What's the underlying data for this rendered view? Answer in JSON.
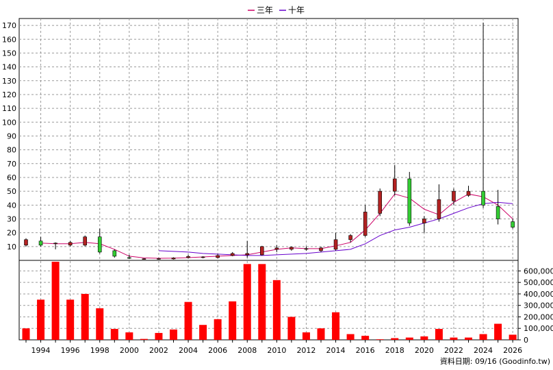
{
  "legend": {
    "ma3_label": "三年",
    "ma10_label": "十年",
    "ma3_color": "#cc0066",
    "ma10_color": "#6600cc"
  },
  "footer": {
    "text": "資料日期: 09/16  (Goodinfo.tw)"
  },
  "colors": {
    "up_candle": "#b22222",
    "down_candle": "#33cc33",
    "volume_bar": "#ff0000",
    "grid": "#999999"
  },
  "chart_data": {
    "type": "candlestick+line+bar",
    "x_ticks": [
      "1994",
      "1996",
      "1998",
      "2000",
      "2002",
      "2004",
      "2006",
      "2008",
      "2010",
      "2012",
      "2014",
      "2016",
      "2018",
      "2020",
      "2022",
      "2024",
      "2026"
    ],
    "price_axis": {
      "ylim": [
        0,
        175
      ],
      "ticks": [
        10,
        20,
        30,
        40,
        50,
        60,
        70,
        80,
        90,
        100,
        110,
        120,
        130,
        140,
        150,
        160,
        170
      ]
    },
    "volume_axis": {
      "ylim": [
        0,
        680000
      ],
      "ticks": [
        0,
        100000,
        200000,
        300000,
        400000,
        500000,
        600000
      ],
      "tick_labels": [
        "0",
        "100,000",
        "200,000",
        "300,000",
        "400,000",
        "500,000",
        "600,000"
      ]
    },
    "candles": [
      {
        "year": 1993,
        "open": 11,
        "close": 15,
        "high": 16,
        "low": 10
      },
      {
        "year": 1994,
        "open": 14,
        "close": 11,
        "high": 17,
        "low": 10
      },
      {
        "year": 1995,
        "open": 12,
        "close": 12.5,
        "high": 13,
        "low": 8
      },
      {
        "year": 1996,
        "open": 11,
        "close": 13,
        "high": 14,
        "low": 10
      },
      {
        "year": 1997,
        "open": 11,
        "close": 17,
        "high": 18,
        "low": 10
      },
      {
        "year": 1998,
        "open": 17,
        "close": 6,
        "high": 23,
        "low": 5
      },
      {
        "year": 1999,
        "open": 7,
        "close": 3,
        "high": 8,
        "low": 2
      },
      {
        "year": 2000,
        "open": 2,
        "close": 1.5,
        "high": 4,
        "low": 1
      },
      {
        "year": 2001,
        "open": 1,
        "close": 1.2,
        "high": 1.5,
        "low": 0.5
      },
      {
        "year": 2002,
        "open": 1,
        "close": 1.3,
        "high": 1.8,
        "low": 0.5
      },
      {
        "year": 2003,
        "open": 1,
        "close": 1.8,
        "high": 2.2,
        "low": 0.6
      },
      {
        "year": 2004,
        "open": 2,
        "close": 2.8,
        "high": 4,
        "low": 1.5
      },
      {
        "year": 2005,
        "open": 2,
        "close": 2.5,
        "high": 3,
        "low": 1.5
      },
      {
        "year": 2006,
        "open": 2,
        "close": 3.5,
        "high": 4.5,
        "low": 1.5
      },
      {
        "year": 2007,
        "open": 3.5,
        "close": 5,
        "high": 6,
        "low": 3
      },
      {
        "year": 2008,
        "open": 4,
        "close": 5,
        "high": 14,
        "low": 2
      },
      {
        "year": 2009,
        "open": 4,
        "close": 10,
        "high": 10.5,
        "low": 3.5
      },
      {
        "year": 2010,
        "open": 8,
        "close": 9,
        "high": 11,
        "low": 6
      },
      {
        "year": 2011,
        "open": 8,
        "close": 9.5,
        "high": 10,
        "low": 7
      },
      {
        "year": 2012,
        "open": 8,
        "close": 8.5,
        "high": 10,
        "low": 7
      },
      {
        "year": 2013,
        "open": 7,
        "close": 9,
        "high": 10,
        "low": 6
      },
      {
        "year": 2014,
        "open": 8,
        "close": 15,
        "high": 20,
        "low": 7
      },
      {
        "year": 2015,
        "open": 15,
        "close": 18,
        "high": 19,
        "low": 13
      },
      {
        "year": 2016,
        "open": 18,
        "close": 35,
        "high": 40,
        "low": 17
      },
      {
        "year": 2017,
        "open": 34,
        "close": 50,
        "high": 52,
        "low": 32
      },
      {
        "year": 2018,
        "open": 50,
        "close": 59,
        "high": 69,
        "low": 47
      },
      {
        "year": 2019,
        "open": 59,
        "close": 27,
        "high": 64,
        "low": 25
      },
      {
        "year": 2020,
        "open": 27,
        "close": 30,
        "high": 32,
        "low": 20
      },
      {
        "year": 2021,
        "open": 30,
        "close": 44,
        "high": 55,
        "low": 28
      },
      {
        "year": 2022,
        "open": 43,
        "close": 50,
        "high": 52,
        "low": 40
      },
      {
        "year": 2023,
        "open": 47,
        "close": 50,
        "high": 54,
        "low": 46
      },
      {
        "year": 2024,
        "open": 50,
        "close": 40,
        "high": 172,
        "low": 38
      },
      {
        "year": 2025,
        "open": 39,
        "close": 30,
        "high": 51,
        "low": 26
      },
      {
        "year": 2026,
        "open": 28,
        "close": 24,
        "high": 30,
        "low": 23
      }
    ],
    "series": [
      {
        "name": "三年",
        "points": [
          [
            1994,
            12.5
          ],
          [
            1995,
            12
          ],
          [
            1996,
            12
          ],
          [
            1997,
            13
          ],
          [
            1998,
            12
          ],
          [
            1999,
            8
          ],
          [
            2000,
            3
          ],
          [
            2001,
            1.8
          ],
          [
            2002,
            1.5
          ],
          [
            2003,
            1.6
          ],
          [
            2004,
            2
          ],
          [
            2005,
            2.5
          ],
          [
            2006,
            3
          ],
          [
            2007,
            3.5
          ],
          [
            2008,
            4
          ],
          [
            2009,
            6
          ],
          [
            2010,
            8
          ],
          [
            2011,
            9
          ],
          [
            2012,
            8.5
          ],
          [
            2013,
            8.5
          ],
          [
            2014,
            10.5
          ],
          [
            2015,
            13
          ],
          [
            2016,
            22
          ],
          [
            2017,
            34
          ],
          [
            2018,
            48
          ],
          [
            2019,
            45
          ],
          [
            2020,
            37
          ],
          [
            2021,
            33
          ],
          [
            2022,
            42
          ],
          [
            2023,
            48
          ],
          [
            2024,
            46
          ],
          [
            2025,
            40
          ],
          [
            2026,
            30
          ]
        ]
      },
      {
        "name": "十年",
        "points": [
          [
            2002,
            7
          ],
          [
            2003,
            6.5
          ],
          [
            2004,
            6
          ],
          [
            2005,
            5
          ],
          [
            2006,
            4.5
          ],
          [
            2007,
            4
          ],
          [
            2008,
            3.5
          ],
          [
            2009,
            3.5
          ],
          [
            2010,
            4
          ],
          [
            2011,
            4.5
          ],
          [
            2012,
            5
          ],
          [
            2013,
            6
          ],
          [
            2014,
            7
          ],
          [
            2015,
            8
          ],
          [
            2016,
            12
          ],
          [
            2017,
            18
          ],
          [
            2018,
            22
          ],
          [
            2019,
            24
          ],
          [
            2020,
            27
          ],
          [
            2021,
            30
          ],
          [
            2022,
            34
          ],
          [
            2023,
            38
          ],
          [
            2024,
            41
          ],
          [
            2025,
            42
          ],
          [
            2026,
            41
          ]
        ]
      }
    ],
    "volume": [
      {
        "year": 1993,
        "value": 100000
      },
      {
        "year": 1994,
        "value": 350000
      },
      {
        "year": 1995,
        "value": 680000
      },
      {
        "year": 1996,
        "value": 350000
      },
      {
        "year": 1997,
        "value": 400000
      },
      {
        "year": 1998,
        "value": 275000
      },
      {
        "year": 1999,
        "value": 95000
      },
      {
        "year": 2000,
        "value": 65000
      },
      {
        "year": 2001,
        "value": 8000
      },
      {
        "year": 2002,
        "value": 60000
      },
      {
        "year": 2003,
        "value": 90000
      },
      {
        "year": 2004,
        "value": 330000
      },
      {
        "year": 2005,
        "value": 130000
      },
      {
        "year": 2006,
        "value": 180000
      },
      {
        "year": 2007,
        "value": 335000
      },
      {
        "year": 2008,
        "value": 660000
      },
      {
        "year": 2009,
        "value": 660000
      },
      {
        "year": 2010,
        "value": 520000
      },
      {
        "year": 2011,
        "value": 200000
      },
      {
        "year": 2012,
        "value": 65000
      },
      {
        "year": 2013,
        "value": 100000
      },
      {
        "year": 2014,
        "value": 240000
      },
      {
        "year": 2015,
        "value": 50000
      },
      {
        "year": 2016,
        "value": 35000
      },
      {
        "year": 2017,
        "value": 5000
      },
      {
        "year": 2018,
        "value": 15000
      },
      {
        "year": 2019,
        "value": 20000
      },
      {
        "year": 2020,
        "value": 30000
      },
      {
        "year": 2021,
        "value": 95000
      },
      {
        "year": 2022,
        "value": 20000
      },
      {
        "year": 2023,
        "value": 20000
      },
      {
        "year": 2024,
        "value": 50000
      },
      {
        "year": 2025,
        "value": 140000
      },
      {
        "year": 2026,
        "value": 45000
      }
    ]
  }
}
